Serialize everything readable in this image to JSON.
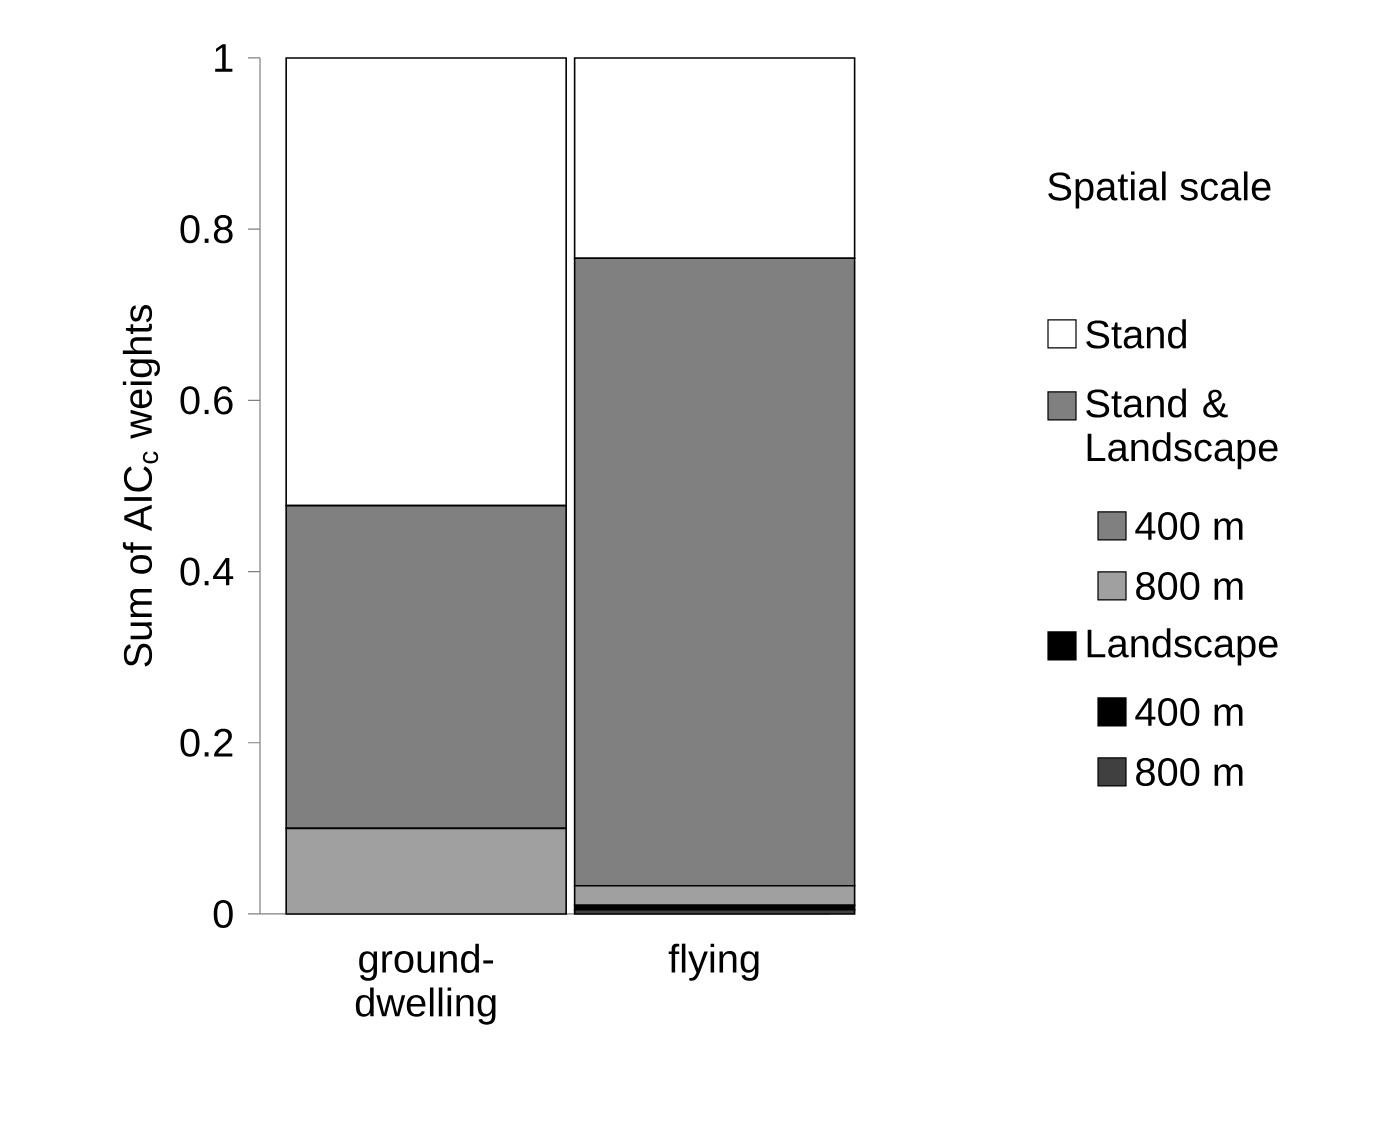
{
  "chart_data": {
    "type": "bar",
    "stacked": true,
    "ylabel": "Sum of AIC$_{c}$ weights",
    "legend_title": "Spatial scale",
    "legend": "right",
    "categories": [
      "ground-dwelling",
      "flying"
    ],
    "ylim": [
      0,
      1
    ],
    "yticks": [
      0,
      0.2,
      0.4,
      0.6,
      0.8,
      1
    ],
    "annotations": [
      "Stand & Landscape",
      "Landscape"
    ],
    "series": [
      {
        "name": "800 m",
        "color": "#404040",
        "values": [
          0,
          0.005
        ]
      },
      {
        "name": "400 m",
        "color": "#000000",
        "values": [
          0,
          0.005
        ]
      },
      {
        "name": "800 m",
        "color": "#a0a0a0",
        "values": [
          0.1,
          0.023
        ]
      },
      {
        "name": "400 m",
        "color": "#808080",
        "values": [
          0.377,
          0.733
        ]
      },
      {
        "name": "Stand",
        "color": "#ffffff",
        "values": [
          0.523,
          0.234
        ]
      }
    ]
  }
}
